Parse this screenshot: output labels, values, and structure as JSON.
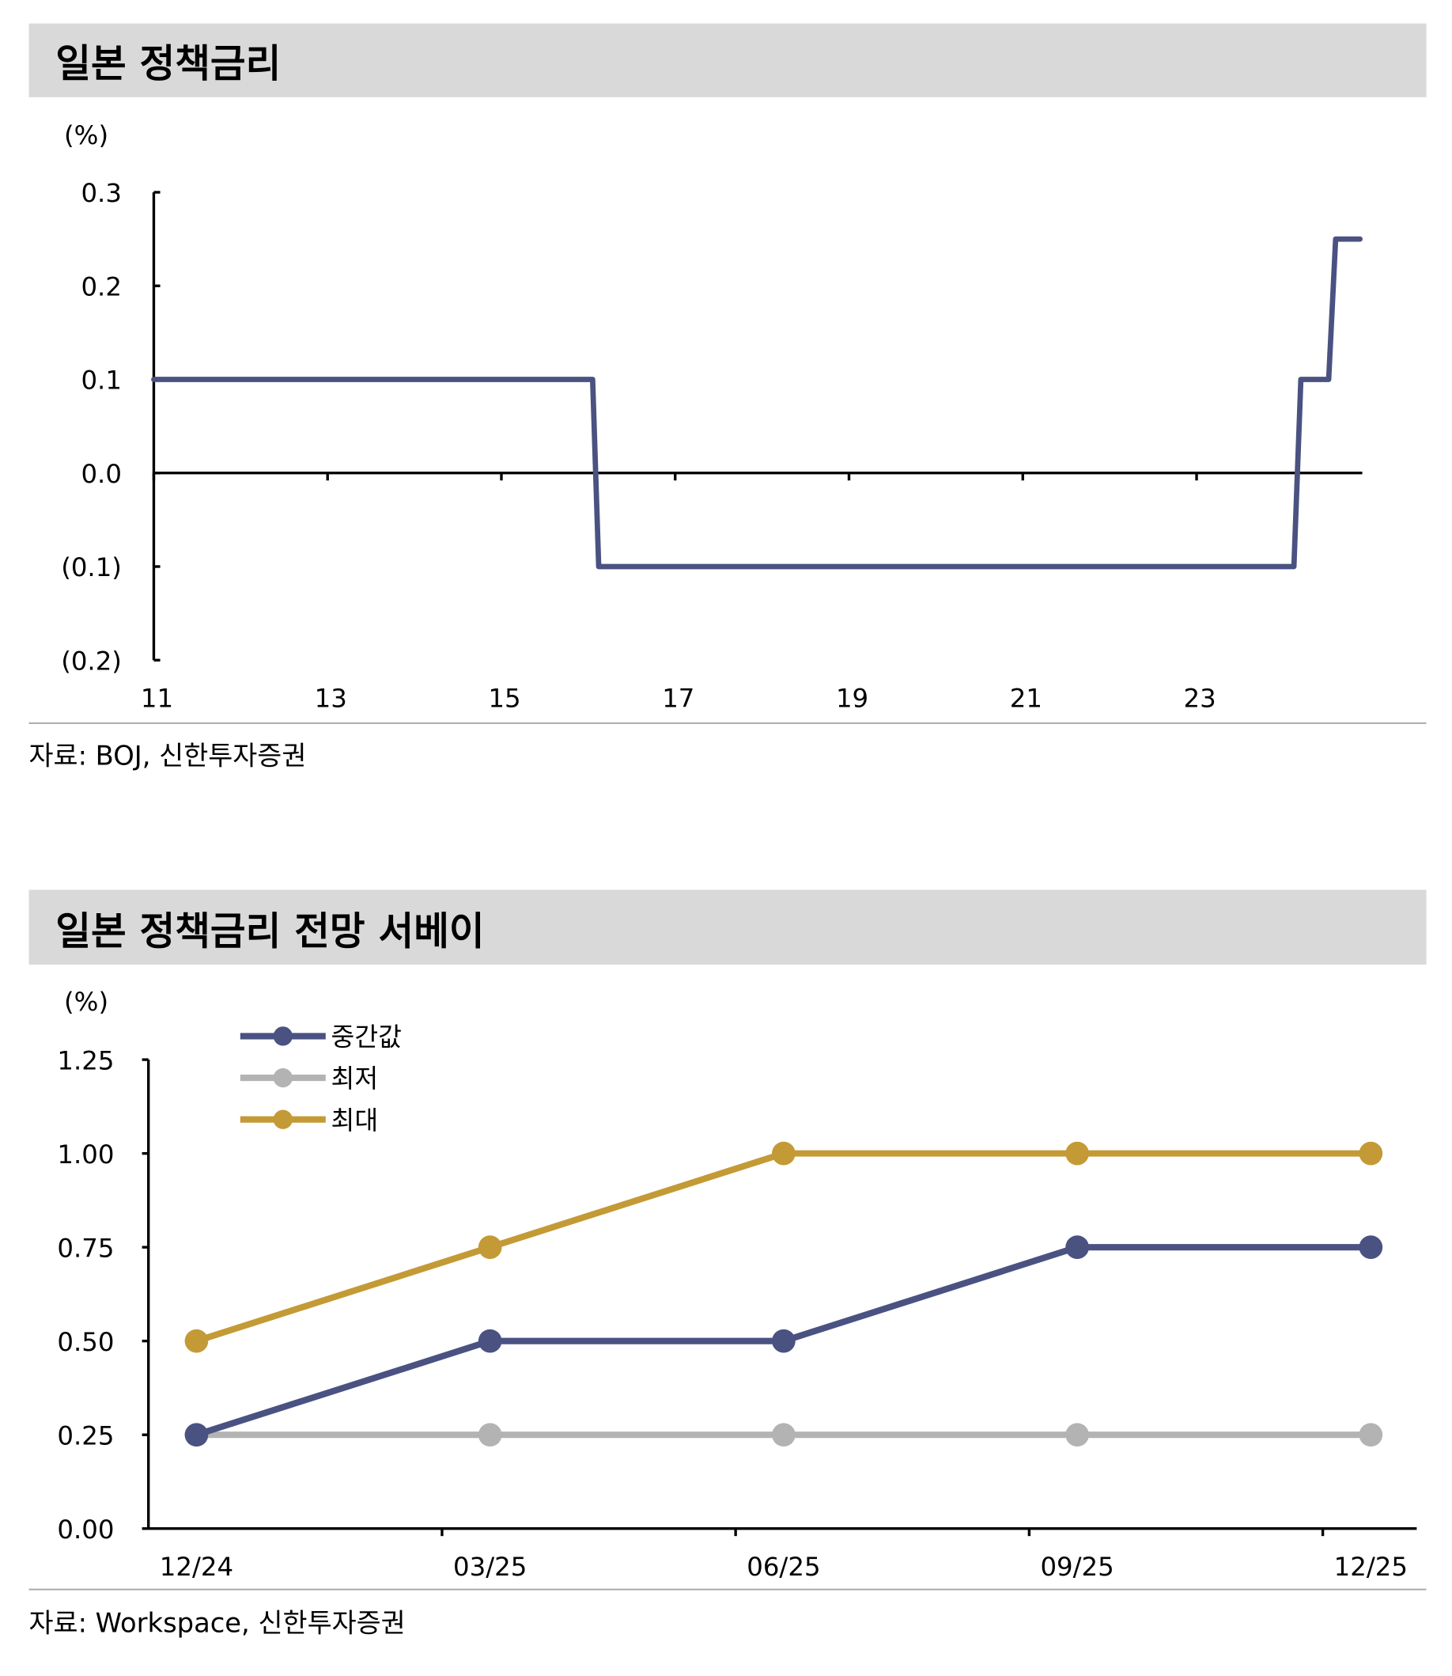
{
  "colors": {
    "median": "#4a5282",
    "min": "#b3b3b3",
    "max": "#c39a35",
    "header_bg": "#d9d9d9"
  },
  "chart_data": [
    {
      "type": "line",
      "title": "일본 정책금리",
      "ylabel": "(%)",
      "xlabel": "",
      "ylim": [
        -0.2,
        0.3
      ],
      "xlim": [
        2011,
        2024.9
      ],
      "yticks": [
        0.3,
        0.2,
        0.1,
        0.0,
        -0.1,
        -0.2
      ],
      "ytick_labels": [
        "0.3",
        "0.2",
        "0.1",
        "0.0",
        "(0.1)",
        "(0.2)"
      ],
      "xticks": [
        2011,
        2013,
        2015,
        2017,
        2019,
        2021,
        2023
      ],
      "xtick_labels": [
        "11",
        "13",
        "15",
        "17",
        "19",
        "21",
        "23"
      ],
      "series": [
        {
          "name": "정책금리",
          "color": "#4a5282",
          "points": [
            [
              2011,
              0.1
            ],
            [
              2016.05,
              0.1
            ],
            [
              2016.12,
              -0.1
            ],
            [
              2024.12,
              -0.1
            ],
            [
              2024.2,
              0.1
            ],
            [
              2024.52,
              0.1
            ],
            [
              2024.6,
              0.25
            ],
            [
              2024.88,
              0.25
            ]
          ]
        }
      ],
      "source": "자료: BOJ, 신한투자증권"
    },
    {
      "type": "line",
      "title": "일본 정책금리 전망 서베이",
      "ylabel": "(%)",
      "xlabel": "",
      "ylim": [
        0,
        1.25
      ],
      "yticks": [
        1.25,
        1.0,
        0.75,
        0.5,
        0.25,
        0.0
      ],
      "ytick_labels": [
        "1.25",
        "1.00",
        "0.75",
        "0.50",
        "0.25",
        "0.00"
      ],
      "categories": [
        "12/24",
        "03/25",
        "06/25",
        "09/25",
        "12/25"
      ],
      "legend_position": "top-left",
      "series": [
        {
          "name": "중간값",
          "color": "#4a5282",
          "values": [
            0.25,
            0.5,
            0.5,
            0.75,
            0.75
          ]
        },
        {
          "name": "최저",
          "color": "#b3b3b3",
          "values": [
            0.25,
            0.25,
            0.25,
            0.25,
            0.25
          ]
        },
        {
          "name": "최대",
          "color": "#c39a35",
          "values": [
            0.5,
            0.75,
            1.0,
            1.0,
            1.0
          ]
        }
      ],
      "source": "자료: Workspace, 신한투자증권"
    }
  ]
}
